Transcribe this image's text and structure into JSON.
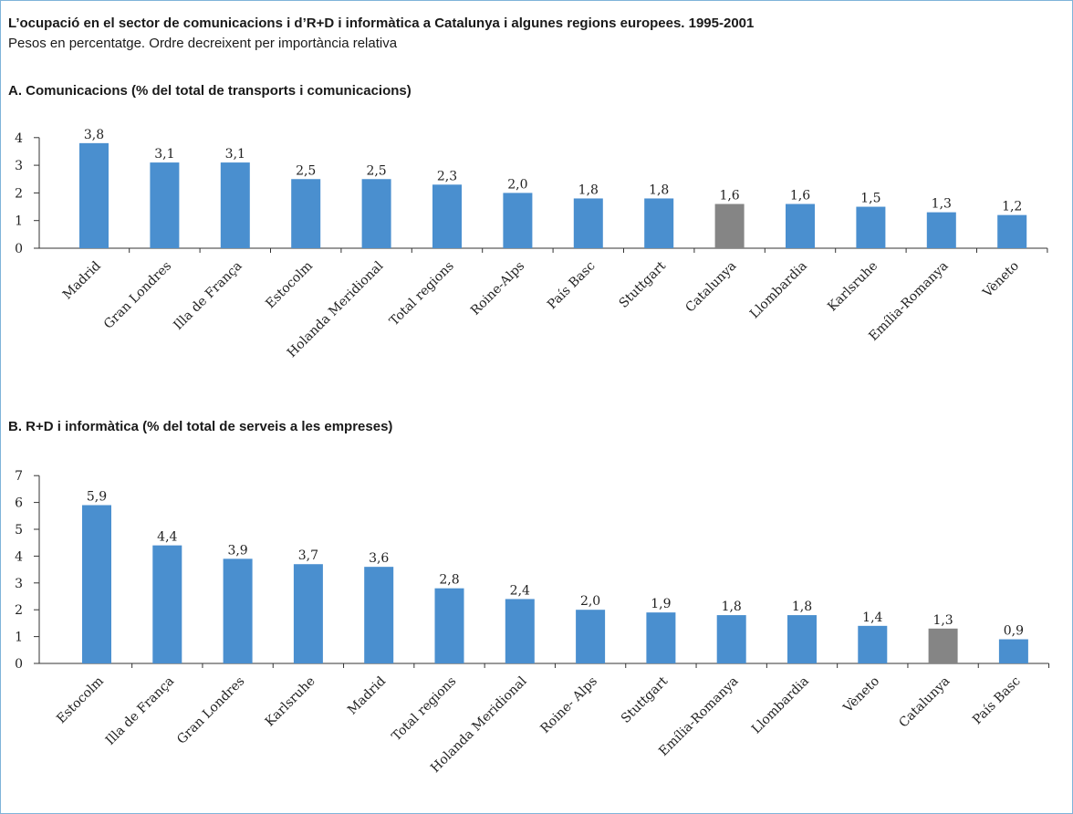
{
  "header": {
    "title": "L’ocupació en el sector de comunicacions i d’R+D i informàtica a Catalunya i algunes regions europees. 1995-2001",
    "subtitle": "Pesos en percentatge. Ordre decreixent per importància relativa"
  },
  "colors": {
    "bar": "#4a8fcf",
    "highlight": "#858585",
    "frame": "#7fb4d9"
  },
  "chart_data": [
    {
      "type": "bar",
      "title": "A. Comunicacions (% del total de transports i comunicacions)",
      "categories": [
        "Madrid",
        "Gran Londres",
        "Illa de França",
        "Estocolm",
        "Holanda Meridional",
        "Total regions",
        "Roine-Alps",
        "País Basc",
        "Stuttgart",
        "Catalunya",
        "Llombardia",
        "Karlsruhe",
        "Emília-Romanya",
        "Vèneto"
      ],
      "values": [
        3.8,
        3.1,
        3.1,
        2.5,
        2.5,
        2.3,
        2.0,
        1.8,
        1.8,
        1.6,
        1.6,
        1.5,
        1.3,
        1.2
      ],
      "value_labels": [
        "3,8",
        "3,1",
        "3,1",
        "2,5",
        "2,5",
        "2,3",
        "2,0",
        "1,8",
        "1,8",
        "1,6",
        "1,6",
        "1,5",
        "1,3",
        "1,2"
      ],
      "highlight": "Catalunya",
      "ylim": [
        0,
        4
      ],
      "yticks": [
        "0",
        "1",
        "2",
        "3",
        "4"
      ],
      "grid": false,
      "legend": "none"
    },
    {
      "type": "bar",
      "title": "B. R+D i informàtica (% del total de serveis a les empreses)",
      "categories": [
        "Estocolm",
        "Illa de França",
        "Gran Londres",
        "Karlsruhe",
        "Madrid",
        "Total regions",
        "Holanda Meridional",
        "Roine- Alps",
        "Stuttgart",
        "Emília-Romanya",
        "Llombardia",
        "Vèneto",
        "Catalunya",
        "País Basc"
      ],
      "values": [
        5.9,
        4.4,
        3.9,
        3.7,
        3.6,
        2.8,
        2.4,
        2.0,
        1.9,
        1.8,
        1.8,
        1.4,
        1.3,
        0.9
      ],
      "value_labels": [
        "5,9",
        "4,4",
        "3,9",
        "3,7",
        "3,6",
        "2,8",
        "2,4",
        "2,0",
        "1,9",
        "1,8",
        "1,8",
        "1,4",
        "1,3",
        "0,9"
      ],
      "highlight": "Catalunya",
      "ylim": [
        0,
        7
      ],
      "yticks": [
        "0",
        "1",
        "2",
        "3",
        "4",
        "5",
        "6",
        "7"
      ],
      "grid": false,
      "legend": "none"
    }
  ]
}
